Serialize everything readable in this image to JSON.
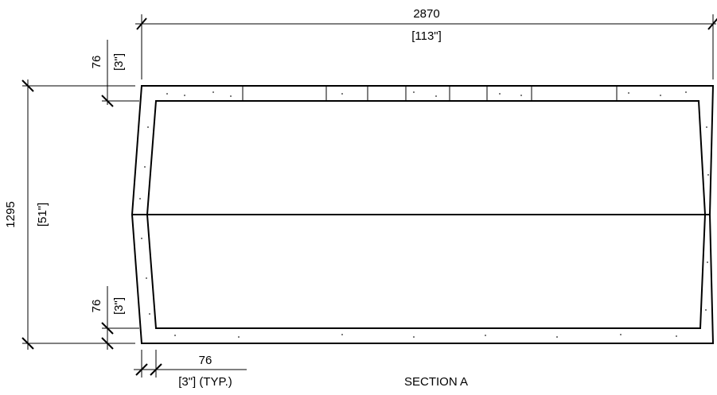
{
  "dimensions": {
    "overall_width": {
      "metric": "2870",
      "imperial": "[113\"]"
    },
    "top_wall": {
      "metric": "76",
      "imperial": "[3\"]"
    },
    "overall_height": {
      "metric": "1295",
      "imperial": "[51\"]"
    },
    "bottom_wall": {
      "metric": "76",
      "imperial": "[3\"]"
    },
    "side_wall": {
      "metric": "76",
      "imperial": "[3\"] (TYP.)"
    }
  },
  "caption": {
    "title": "SECTION A"
  }
}
